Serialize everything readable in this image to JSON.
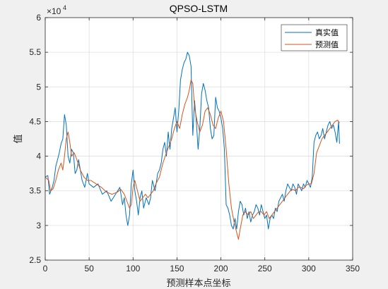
{
  "chart_data": {
    "type": "line",
    "title": "QPSO-LSTM",
    "xlabel": "预测样本点坐标",
    "ylabel": "值",
    "exponent_label": "×10",
    "exponent_power": "4",
    "xlim": [
      0,
      350
    ],
    "ylim": [
      25000,
      60000
    ],
    "xticks": [
      0,
      50,
      100,
      150,
      200,
      250,
      300,
      350
    ],
    "xtick_labels": [
      "0",
      "50",
      "100",
      "150",
      "200",
      "250",
      "300",
      "350"
    ],
    "yticks": [
      25000,
      30000,
      35000,
      40000,
      45000,
      50000,
      55000,
      60000
    ],
    "ytick_labels": [
      "2.5",
      "3",
      "3.5",
      "4",
      "4.5",
      "5",
      "5.5",
      "6"
    ],
    "grid": true,
    "legend_position": "top-right",
    "series": [
      {
        "name": "真实值",
        "color": "#0072bd",
        "keypoints": [
          [
            0,
            37000
          ],
          [
            3,
            37200
          ],
          [
            5,
            34500
          ],
          [
            8,
            35500
          ],
          [
            10,
            36500
          ],
          [
            12,
            38500
          ],
          [
            14,
            39500
          ],
          [
            16,
            40500
          ],
          [
            18,
            41800
          ],
          [
            20,
            42500
          ],
          [
            22,
            46000
          ],
          [
            24,
            44500
          ],
          [
            26,
            40000
          ],
          [
            28,
            39000
          ],
          [
            30,
            41000
          ],
          [
            32,
            40500
          ],
          [
            34,
            37500
          ],
          [
            36,
            38000
          ],
          [
            38,
            39500
          ],
          [
            40,
            38000
          ],
          [
            42,
            36500
          ],
          [
            45,
            35500
          ],
          [
            48,
            37500
          ],
          [
            50,
            36000
          ],
          [
            55,
            35500
          ],
          [
            60,
            36000
          ],
          [
            65,
            34500
          ],
          [
            70,
            35000
          ],
          [
            75,
            33500
          ],
          [
            80,
            34500
          ],
          [
            85,
            35500
          ],
          [
            88,
            33000
          ],
          [
            90,
            34000
          ],
          [
            92,
            31500
          ],
          [
            94,
            30000
          ],
          [
            96,
            31500
          ],
          [
            98,
            36000
          ],
          [
            100,
            38000
          ],
          [
            102,
            35000
          ],
          [
            104,
            33500
          ],
          [
            106,
            31500
          ],
          [
            108,
            34000
          ],
          [
            110,
            35000
          ],
          [
            112,
            32500
          ],
          [
            115,
            34000
          ],
          [
            118,
            33000
          ],
          [
            120,
            34000
          ],
          [
            122,
            36500
          ],
          [
            125,
            35000
          ],
          [
            128,
            37500
          ],
          [
            130,
            38000
          ],
          [
            132,
            39000
          ],
          [
            134,
            41000
          ],
          [
            136,
            42000
          ],
          [
            138,
            40000
          ],
          [
            140,
            43500
          ],
          [
            142,
            41000
          ],
          [
            144,
            44000
          ],
          [
            146,
            45500
          ],
          [
            148,
            47000
          ],
          [
            150,
            43500
          ],
          [
            152,
            46500
          ],
          [
            154,
            51000
          ],
          [
            156,
            52500
          ],
          [
            158,
            53500
          ],
          [
            160,
            54000
          ],
          [
            162,
            55000
          ],
          [
            164,
            54500
          ],
          [
            166,
            53000
          ],
          [
            168,
            43000
          ],
          [
            170,
            48000
          ],
          [
            172,
            45000
          ],
          [
            174,
            41000
          ],
          [
            176,
            44000
          ],
          [
            178,
            49000
          ],
          [
            180,
            50500
          ],
          [
            182,
            49500
          ],
          [
            184,
            48000
          ],
          [
            186,
            47000
          ],
          [
            188,
            44000
          ],
          [
            190,
            42500
          ],
          [
            192,
            43000
          ],
          [
            194,
            48500
          ],
          [
            196,
            47000
          ],
          [
            198,
            46500
          ],
          [
            200,
            45500
          ],
          [
            202,
            44000
          ],
          [
            204,
            41000
          ],
          [
            206,
            33000
          ],
          [
            208,
            32500
          ],
          [
            210,
            31500
          ],
          [
            212,
            30000
          ],
          [
            214,
            29500
          ],
          [
            216,
            31000
          ],
          [
            218,
            29500
          ],
          [
            220,
            32000
          ],
          [
            222,
            33500
          ],
          [
            224,
            33000
          ],
          [
            226,
            31500
          ],
          [
            228,
            32500
          ],
          [
            230,
            31000
          ],
          [
            232,
            32000
          ],
          [
            234,
            30500
          ],
          [
            236,
            31500
          ],
          [
            238,
            32000
          ],
          [
            240,
            33000
          ],
          [
            242,
            32500
          ],
          [
            244,
            31500
          ],
          [
            246,
            33000
          ],
          [
            248,
            32000
          ],
          [
            250,
            31000
          ],
          [
            252,
            31500
          ],
          [
            254,
            29500
          ],
          [
            256,
            31000
          ],
          [
            258,
            31500
          ],
          [
            260,
            31000
          ],
          [
            262,
            32500
          ],
          [
            264,
            32000
          ],
          [
            266,
            33500
          ],
          [
            268,
            34000
          ],
          [
            270,
            34500
          ],
          [
            272,
            33500
          ],
          [
            274,
            35000
          ],
          [
            276,
            36000
          ],
          [
            278,
            35500
          ],
          [
            280,
            35000
          ],
          [
            282,
            36000
          ],
          [
            284,
            35500
          ],
          [
            286,
            34500
          ],
          [
            288,
            36000
          ],
          [
            290,
            35500
          ],
          [
            292,
            35000
          ],
          [
            294,
            36000
          ],
          [
            296,
            35500
          ],
          [
            298,
            36500
          ],
          [
            300,
            36000
          ],
          [
            302,
            35500
          ],
          [
            304,
            37000
          ],
          [
            306,
            42000
          ],
          [
            308,
            43000
          ],
          [
            310,
            43500
          ],
          [
            312,
            42500
          ],
          [
            314,
            43000
          ],
          [
            316,
            44000
          ],
          [
            318,
            42500
          ],
          [
            320,
            43500
          ],
          [
            322,
            44500
          ],
          [
            324,
            45000
          ],
          [
            326,
            44000
          ],
          [
            328,
            44500
          ],
          [
            330,
            43500
          ],
          [
            332,
            42000
          ],
          [
            334,
            45000
          ],
          [
            335,
            41800
          ]
        ]
      },
      {
        "name": "预测值",
        "color": "#d95319",
        "keypoints": [
          [
            0,
            37000
          ],
          [
            4,
            36500
          ],
          [
            6,
            35000
          ],
          [
            9,
            35300
          ],
          [
            12,
            36500
          ],
          [
            15,
            38000
          ],
          [
            18,
            39000
          ],
          [
            20,
            38000
          ],
          [
            22,
            40000
          ],
          [
            24,
            42500
          ],
          [
            26,
            43500
          ],
          [
            28,
            42000
          ],
          [
            30,
            40000
          ],
          [
            33,
            40500
          ],
          [
            36,
            39500
          ],
          [
            40,
            38000
          ],
          [
            44,
            37000
          ],
          [
            48,
            36500
          ],
          [
            52,
            36500
          ],
          [
            58,
            36000
          ],
          [
            64,
            35500
          ],
          [
            70,
            34800
          ],
          [
            76,
            34500
          ],
          [
            82,
            34800
          ],
          [
            86,
            35200
          ],
          [
            90,
            34500
          ],
          [
            93,
            33500
          ],
          [
            96,
            32500
          ],
          [
            98,
            33000
          ],
          [
            100,
            35500
          ],
          [
            102,
            36500
          ],
          [
            105,
            35000
          ],
          [
            108,
            33500
          ],
          [
            111,
            34000
          ],
          [
            114,
            34500
          ],
          [
            117,
            34000
          ],
          [
            120,
            34500
          ],
          [
            123,
            35000
          ],
          [
            126,
            36000
          ],
          [
            130,
            37000
          ],
          [
            134,
            39000
          ],
          [
            138,
            40500
          ],
          [
            141,
            41500
          ],
          [
            144,
            42500
          ],
          [
            147,
            44000
          ],
          [
            150,
            45000
          ],
          [
            153,
            44000
          ],
          [
            156,
            46000
          ],
          [
            159,
            47500
          ],
          [
            162,
            48500
          ],
          [
            164,
            49500
          ],
          [
            166,
            51000
          ],
          [
            168,
            50500
          ],
          [
            170,
            47000
          ],
          [
            173,
            45000
          ],
          [
            176,
            43500
          ],
          [
            179,
            44500
          ],
          [
            182,
            46500
          ],
          [
            185,
            47000
          ],
          [
            188,
            46000
          ],
          [
            191,
            44500
          ],
          [
            194,
            44000
          ],
          [
            197,
            45500
          ],
          [
            200,
            46500
          ],
          [
            203,
            45000
          ],
          [
            206,
            41000
          ],
          [
            209,
            36000
          ],
          [
            212,
            32500
          ],
          [
            215,
            30500
          ],
          [
            218,
            29000
          ],
          [
            220,
            28000
          ],
          [
            222,
            29500
          ],
          [
            225,
            31500
          ],
          [
            228,
            32000
          ],
          [
            231,
            31500
          ],
          [
            234,
            32000
          ],
          [
            237,
            31000
          ],
          [
            240,
            31500
          ],
          [
            243,
            32000
          ],
          [
            246,
            32000
          ],
          [
            249,
            31500
          ],
          [
            252,
            32000
          ],
          [
            255,
            31000
          ],
          [
            258,
            31500
          ],
          [
            261,
            32000
          ],
          [
            264,
            32500
          ],
          [
            267,
            33000
          ],
          [
            270,
            33500
          ],
          [
            273,
            34000
          ],
          [
            276,
            34500
          ],
          [
            279,
            35000
          ],
          [
            282,
            35200
          ],
          [
            285,
            35000
          ],
          [
            288,
            35500
          ],
          [
            291,
            35500
          ],
          [
            294,
            35300
          ],
          [
            297,
            35800
          ],
          [
            300,
            36000
          ],
          [
            303,
            36000
          ],
          [
            306,
            37500
          ],
          [
            309,
            40500
          ],
          [
            312,
            41500
          ],
          [
            315,
            42500
          ],
          [
            318,
            43000
          ],
          [
            321,
            43500
          ],
          [
            324,
            44000
          ],
          [
            327,
            44500
          ],
          [
            330,
            45000
          ],
          [
            333,
            45200
          ],
          [
            335,
            44800
          ]
        ]
      }
    ]
  }
}
